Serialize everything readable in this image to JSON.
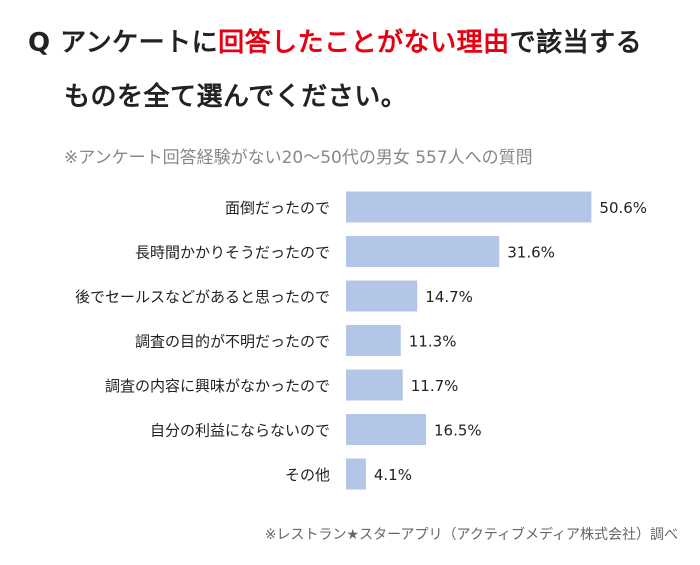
{
  "title": {
    "q_mark": "Q",
    "pre": "アンケートに",
    "highlight": "回答したことがない理由",
    "post": "で該当する",
    "line2": "ものを全て選んでください。"
  },
  "subtitle": "※アンケート回答経験がない20～50代の男女 557人への質問",
  "chart_data": {
    "type": "bar",
    "orientation": "horizontal",
    "categories": [
      "面倒だったので",
      "長時間かかりそうだったので",
      "後でセールスなどがあると思ったので",
      "調査の目的が不明だったので",
      "調査の内容に興味がなかったので",
      "自分の利益にならないので",
      "その他"
    ],
    "values": [
      50.6,
      31.6,
      14.7,
      11.3,
      11.7,
      16.5,
      4.1
    ],
    "value_labels": [
      "50.6%",
      "31.6%",
      "14.7%",
      "11.3%",
      "11.7%",
      "16.5%",
      "4.1%"
    ],
    "xlim": [
      0,
      60
    ],
    "grid": false,
    "bar_color": "#b4c6e7"
  },
  "colors": {
    "highlight": "#e60012",
    "bar": "#b4c6e7"
  },
  "footer": "※レストラン★スターアプリ（アクティブメディア株式会社）調べ"
}
